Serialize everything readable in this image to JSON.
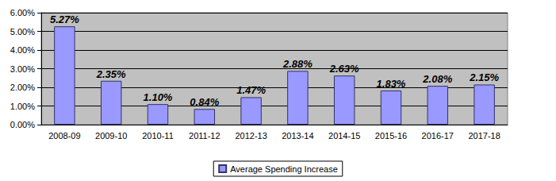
{
  "chart_data": {
    "type": "bar",
    "categories": [
      "2008-09",
      "2009-10",
      "2010-11",
      "2011-12",
      "2012-13",
      "2013-14",
      "2014-15",
      "2015-16",
      "2016-17",
      "2017-18"
    ],
    "series": [
      {
        "name": "Average Spending Increase",
        "color": "#9999ff",
        "values": [
          5.27,
          2.35,
          1.1,
          0.84,
          1.47,
          2.88,
          2.63,
          1.83,
          2.08,
          2.15
        ],
        "value_labels": [
          "5.27%",
          "2.35%",
          "1.10%",
          "0.84%",
          "1.47%",
          "2.88%",
          "2.63%",
          "1.83%",
          "2.08%",
          "2.15%"
        ]
      }
    ],
    "ylim": [
      0,
      6
    ],
    "yticks": [
      {
        "value": 0,
        "label": "0.00%"
      },
      {
        "value": 1,
        "label": "1.00%"
      },
      {
        "value": 2,
        "label": "2.00%"
      },
      {
        "value": 3,
        "label": "3.00%"
      },
      {
        "value": 4,
        "label": "4.00%"
      },
      {
        "value": 5,
        "label": "5.00%"
      },
      {
        "value": 6,
        "label": "6.00%"
      }
    ],
    "grid": true,
    "data_labels": true,
    "legend": "bottom"
  }
}
